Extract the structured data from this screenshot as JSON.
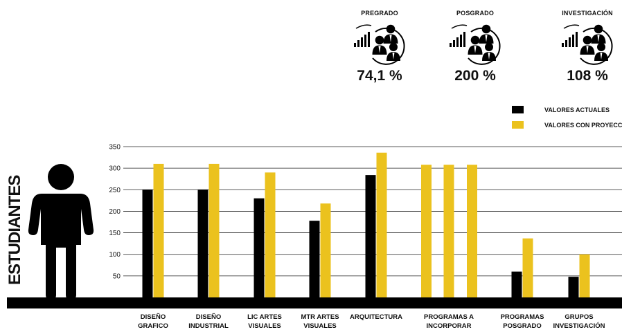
{
  "kpis": [
    {
      "label": "PREGRADO",
      "value": "74,1 %",
      "icon": "people-growth-icon"
    },
    {
      "label": "POSGRADO",
      "value": "200 %",
      "icon": "people-growth-icon"
    },
    {
      "label": "INVESTIGACIÓN",
      "value": "108 %",
      "icon": "people-growth-icon"
    }
  ],
  "colors": {
    "actual": "#000000",
    "projection": "#EBC21E",
    "baseline": "#000000",
    "grid": "#222222"
  },
  "chart_data": {
    "type": "bar",
    "ylabel": "ESTUDIANTES",
    "ylim": [
      0,
      350
    ],
    "yticks": [
      50,
      100,
      150,
      200,
      250,
      300,
      350
    ],
    "categories": [
      "DISEÑO\nGRAFICO",
      "DISEÑO\nINDUSTRIAL",
      "LIC ARTES\nVISUALES",
      "MTR ARTES\nVISUALES",
      "ARQUITECTURA",
      "PROGRAMAS A\nINCORPORAR",
      "PROGRAMAS\nPOSGRADO",
      "GRUPOS\nINVESTIGACIÓN"
    ],
    "series": [
      {
        "name": "VALORES ACTUALES",
        "values": [
          250,
          250,
          230,
          178,
          284,
          null,
          60,
          48
        ]
      },
      {
        "name": "VALORES CON PROYECCION",
        "values": [
          310,
          310,
          290,
          218,
          336,
          308,
          137,
          100
        ]
      }
    ],
    "legend": "top-right",
    "grid": true
  }
}
